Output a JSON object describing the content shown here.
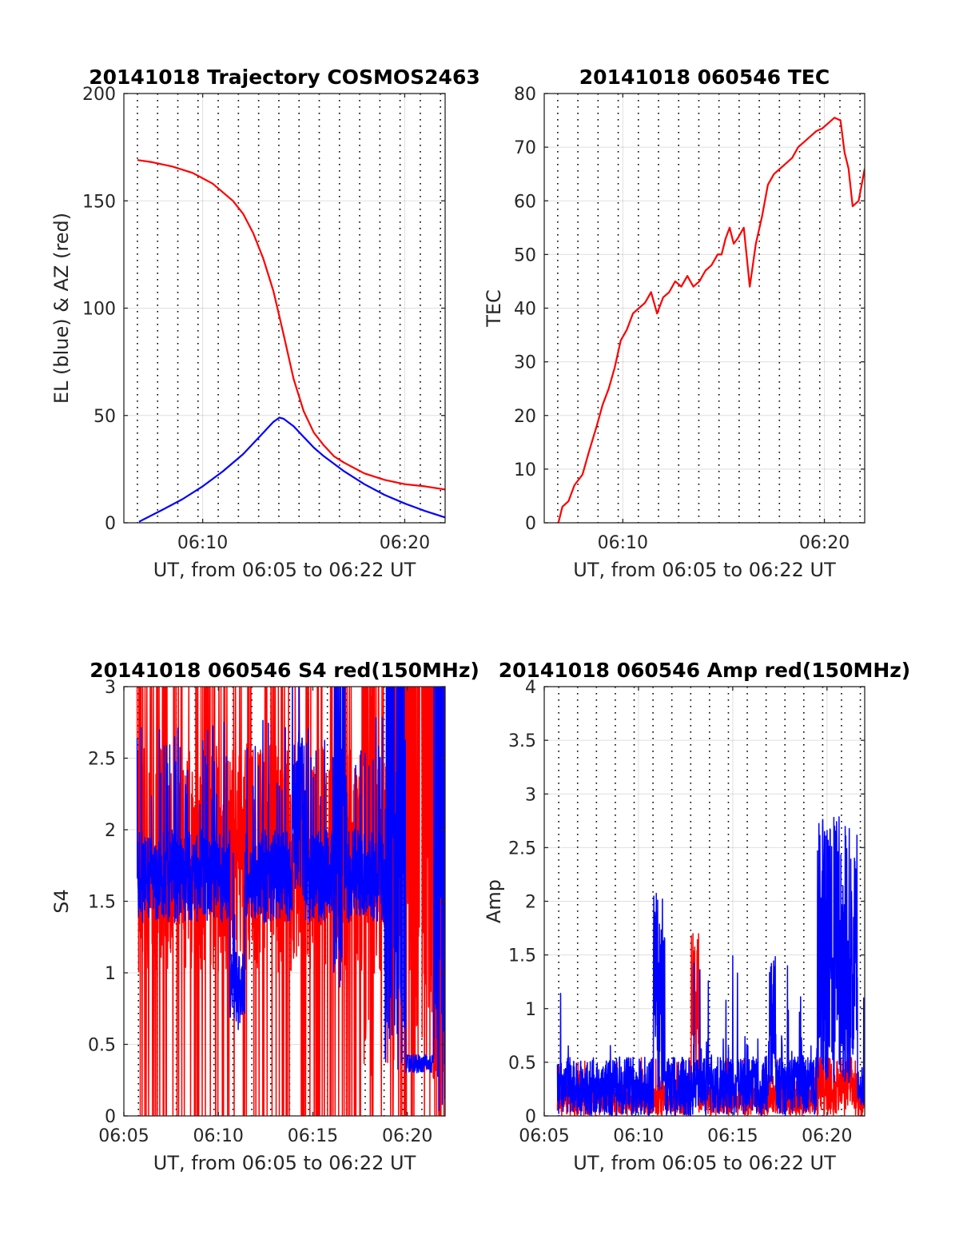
{
  "figure": {
    "colors": {
      "red": "#ff0000",
      "blue": "#0000ff",
      "grid": "#262626",
      "minor_grid": "#000000",
      "text": "#262626"
    }
  },
  "chart_data": [
    {
      "type": "line",
      "title": "20141018 Trajectory COSMOS2463",
      "xlabel": "UT, from 06:05 to 06:22 UT",
      "ylabel": "EL (blue) & AZ (red)",
      "xlim": [
        6.1,
        22.0
      ],
      "ylim": [
        0,
        200
      ],
      "yticks": [
        0,
        50,
        100,
        150,
        200
      ],
      "xticks": [
        10,
        20
      ],
      "xticklabels": [
        "06:10",
        "06:20"
      ],
      "minor_x": [
        6.77,
        7.77,
        8.77,
        9.77,
        10.77,
        11.77,
        12.77,
        13.77,
        14.77,
        15.77,
        16.77,
        17.77,
        18.77,
        19.77,
        20.77,
        21.77
      ],
      "series": [
        {
          "name": "AZ",
          "color": "red",
          "x": [
            6.77,
            7.5,
            8.5,
            9.5,
            10.5,
            11.5,
            12.0,
            12.5,
            13.0,
            13.5,
            14.0,
            14.5,
            15.0,
            15.5,
            16.0,
            16.5,
            17.0,
            17.5,
            18.0,
            19.0,
            20.0,
            21.0,
            22.0
          ],
          "y": [
            169,
            168,
            166,
            163,
            158,
            150,
            144,
            135,
            123,
            108,
            88,
            67,
            52,
            42,
            36,
            31,
            28,
            25.5,
            23,
            20,
            18,
            17,
            15.5
          ]
        },
        {
          "name": "EL",
          "color": "blue",
          "x": [
            6.85,
            8.0,
            9.0,
            10.0,
            11.0,
            12.0,
            12.5,
            13.0,
            13.5,
            13.8,
            14.0,
            14.5,
            15.0,
            15.5,
            16.0,
            17.0,
            18.0,
            19.0,
            20.0,
            21.0,
            22.0
          ],
          "y": [
            0.5,
            6,
            11,
            17,
            24,
            32,
            37,
            42,
            47,
            49,
            48.5,
            45,
            40,
            35,
            31,
            24,
            18,
            13,
            9,
            5.5,
            2.5
          ]
        }
      ]
    },
    {
      "type": "line",
      "title": "20141018 060546 TEC",
      "xlabel": "UT, from 06:05 to 06:22 UT",
      "ylabel": "TEC",
      "xlim": [
        6.1,
        22.0
      ],
      "ylim": [
        0,
        80
      ],
      "yticks": [
        0,
        10,
        20,
        30,
        40,
        50,
        60,
        70,
        80
      ],
      "xticks": [
        10,
        20
      ],
      "xticklabels": [
        "06:10",
        "06:20"
      ],
      "minor_x": [
        6.77,
        7.77,
        8.77,
        9.77,
        10.77,
        11.77,
        12.77,
        13.77,
        14.77,
        15.77,
        16.77,
        17.77,
        18.77,
        19.77,
        20.77,
        21.77
      ],
      "series": [
        {
          "name": "TEC",
          "color": "red",
          "x": [
            6.8,
            7.0,
            7.3,
            7.6,
            8.0,
            8.3,
            8.7,
            9.0,
            9.3,
            9.6,
            9.9,
            10.2,
            10.5,
            10.8,
            11.1,
            11.4,
            11.7,
            12.0,
            12.3,
            12.6,
            12.9,
            13.2,
            13.5,
            13.8,
            14.1,
            14.4,
            14.7,
            14.9,
            15.1,
            15.3,
            15.5,
            15.7,
            16.0,
            16.3,
            16.6,
            16.9,
            17.2,
            17.5,
            17.8,
            18.1,
            18.4,
            18.7,
            19.0,
            19.3,
            19.6,
            19.9,
            20.2,
            20.5,
            20.8,
            21.0,
            21.2,
            21.4,
            21.7,
            22.0
          ],
          "y": [
            0,
            3,
            4,
            7,
            9,
            13,
            18,
            22,
            25,
            29,
            34,
            36,
            39,
            40,
            41,
            43,
            39,
            42,
            43,
            45,
            44,
            46,
            44,
            45,
            47,
            48,
            50,
            50,
            53,
            55,
            52,
            53,
            55,
            44,
            52,
            57,
            63,
            65,
            66,
            67,
            68,
            70,
            71,
            72,
            73,
            73.5,
            74.5,
            75.5,
            75,
            69,
            66,
            59,
            60,
            66
          ]
        }
      ]
    },
    {
      "type": "line",
      "title": "20141018 060546 S4 red(150MHz)",
      "xlabel": "UT, from 06:05 to 06:22 UT",
      "ylabel": "S4",
      "xlim": [
        5,
        22
      ],
      "ylim": [
        0,
        3
      ],
      "yticks": [
        0,
        0.5,
        1,
        1.5,
        2,
        2.5,
        3
      ],
      "yticklabels": [
        "0",
        "0.5",
        "1",
        "1.5",
        "2",
        "2.5",
        "3"
      ],
      "xticks": [
        5,
        10,
        15,
        20
      ],
      "xticklabels": [
        "06:05",
        "06:10",
        "06:15",
        "06:20"
      ],
      "minor_x": [
        5.77,
        6.77,
        7.77,
        8.77,
        9.77,
        10.77,
        11.77,
        12.77,
        13.77,
        14.77,
        15.77,
        16.77,
        17.77,
        18.77,
        19.77,
        20.77,
        21.77
      ],
      "series": [
        {
          "name": "S4 150MHz",
          "color": "red",
          "noise": "s4red",
          "x": [
            5.7,
            22
          ],
          "y": [
            1.2,
            1.2
          ]
        },
        {
          "name": "S4",
          "color": "blue",
          "noise": "s4blue",
          "x": [
            5.7,
            22
          ],
          "y": [
            1.5,
            1.5
          ]
        }
      ]
    },
    {
      "type": "line",
      "title": "20141018 060546 Amp red(150MHz)",
      "xlabel": "UT, from 06:05 to 06:22 UT",
      "ylabel": "Amp",
      "xlim": [
        5,
        22
      ],
      "ylim": [
        0,
        4
      ],
      "yticks": [
        0,
        0.5,
        1,
        1.5,
        2,
        2.5,
        3,
        3.5,
        4
      ],
      "yticklabels": [
        "0",
        "0.5",
        "1",
        "1.5",
        "2",
        "2.5",
        "3",
        "3.5",
        "4"
      ],
      "xticks": [
        5,
        10,
        15,
        20
      ],
      "xticklabels": [
        "06:05",
        "06:10",
        "06:15",
        "06:20"
      ],
      "minor_x": [
        5.77,
        6.77,
        7.77,
        8.77,
        9.77,
        10.77,
        11.77,
        12.77,
        13.77,
        14.77,
        15.77,
        16.77,
        17.77,
        18.77,
        19.77,
        20.77,
        21.77
      ],
      "series": [
        {
          "name": "Amp 150MHz",
          "color": "red",
          "noise": "ampred",
          "x": [
            5.7,
            22
          ],
          "y": [
            0.3,
            0.3
          ]
        },
        {
          "name": "Amp",
          "color": "blue",
          "noise": "ampblue",
          "x": [
            5.7,
            22
          ],
          "y": [
            0.3,
            0.3
          ]
        }
      ]
    }
  ]
}
